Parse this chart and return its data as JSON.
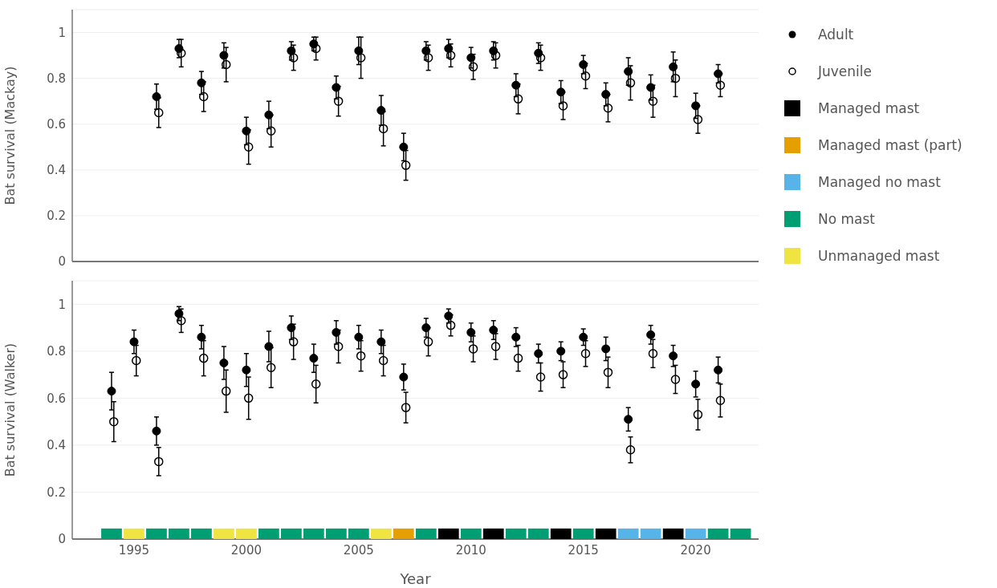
{
  "chart_data": [
    {
      "type": "scatter",
      "ylabel": "Bat survival (Mackay)",
      "xlim": [
        1992.25,
        2022.8
      ],
      "xticks": [
        1995,
        2000,
        2005,
        2010,
        2015,
        2020
      ],
      "ylim": [
        0,
        1.1
      ],
      "yticks": [
        0,
        0.2,
        0.4,
        0.6,
        0.8,
        1
      ],
      "tick_labels": "y",
      "grid": "y",
      "legend": "right",
      "series": [
        {
          "name": "Adult",
          "color": "#000000",
          "marker": "circle",
          "x": [
            1996,
            1997,
            1998,
            1999,
            2000,
            2001,
            2002,
            2003,
            2004,
            2005,
            2006,
            2007,
            2008,
            2009,
            2010,
            2011,
            2012,
            2013,
            2014,
            2015,
            2016,
            2017,
            2018,
            2019,
            2020,
            2021
          ],
          "values": [
            0.72,
            0.93,
            0.78,
            0.9,
            0.57,
            0.64,
            0.92,
            0.95,
            0.76,
            0.92,
            0.66,
            0.5,
            0.92,
            0.93,
            0.89,
            0.92,
            0.77,
            0.91,
            0.74,
            0.86,
            0.73,
            0.83,
            0.76,
            0.85,
            0.68,
            0.82
          ],
          "errors": [
            0.055,
            0.04,
            0.05,
            0.055,
            0.06,
            0.06,
            0.04,
            0.03,
            0.05,
            0.06,
            0.065,
            0.06,
            0.04,
            0.04,
            0.045,
            0.04,
            0.05,
            0.045,
            0.05,
            0.04,
            0.05,
            0.06,
            0.055,
            0.065,
            0.055,
            0.04
          ]
        },
        {
          "name": "Juvenile",
          "color": "#000000",
          "marker": "circle-open",
          "x": [
            1996.1,
            1997.1,
            1998.1,
            1999.1,
            2000.1,
            2001.1,
            2002.1,
            2003.1,
            2004.1,
            2005.1,
            2006.1,
            2007.1,
            2008.1,
            2009.1,
            2010.1,
            2011.1,
            2012.1,
            2013.1,
            2014.1,
            2015.1,
            2016.1,
            2017.1,
            2018.1,
            2019.1,
            2020.1,
            2021.1
          ],
          "values": [
            0.65,
            0.91,
            0.72,
            0.86,
            0.5,
            0.57,
            0.89,
            0.93,
            0.7,
            0.89,
            0.58,
            0.42,
            0.89,
            0.9,
            0.85,
            0.9,
            0.71,
            0.89,
            0.68,
            0.81,
            0.67,
            0.78,
            0.7,
            0.8,
            0.62,
            0.77
          ],
          "errors": [
            0.065,
            0.06,
            0.065,
            0.075,
            0.075,
            0.07,
            0.055,
            0.05,
            0.065,
            0.09,
            0.075,
            0.065,
            0.055,
            0.05,
            0.055,
            0.055,
            0.065,
            0.055,
            0.06,
            0.055,
            0.06,
            0.075,
            0.07,
            0.08,
            0.06,
            0.05
          ]
        }
      ]
    },
    {
      "type": "scatter",
      "xlabel": "Year",
      "ylabel": "Bat survival (Walker)",
      "xlim": [
        1992.25,
        2022.8
      ],
      "xticks": [
        1995,
        2000,
        2005,
        2010,
        2015,
        2020
      ],
      "ylim": [
        0,
        1.1
      ],
      "yticks": [
        0,
        0.2,
        0.4,
        0.6,
        0.8,
        1
      ],
      "grid": "y",
      "legend": "right",
      "series": [
        {
          "color": "#000000",
          "marker": "circle",
          "x": [
            1994,
            1995,
            1996,
            1997,
            1998,
            1999,
            2000,
            2001,
            2002,
            2003,
            2004,
            2005,
            2006,
            2007,
            2008,
            2009,
            2010,
            2011,
            2012,
            2013,
            2014,
            2015,
            2016,
            2017,
            2018,
            2019,
            2020,
            2021
          ],
          "values": [
            0.63,
            0.84,
            0.46,
            0.96,
            0.86,
            0.75,
            0.72,
            0.82,
            0.9,
            0.77,
            0.88,
            0.86,
            0.84,
            0.69,
            0.9,
            0.95,
            0.88,
            0.89,
            0.86,
            0.79,
            0.8,
            0.86,
            0.81,
            0.51,
            0.87,
            0.78,
            0.66,
            0.72
          ],
          "errors": [
            0.08,
            0.05,
            0.06,
            0.03,
            0.05,
            0.07,
            0.07,
            0.065,
            0.05,
            0.06,
            0.05,
            0.05,
            0.05,
            0.055,
            0.04,
            0.03,
            0.04,
            0.04,
            0.04,
            0.04,
            0.04,
            0.035,
            0.05,
            0.05,
            0.04,
            0.045,
            0.055,
            0.055
          ]
        },
        {
          "color": "#000000",
          "marker": "circle-open",
          "x": [
            1994.1,
            1995.1,
            1996.1,
            1997.1,
            1998.1,
            1999.1,
            2000.1,
            2001.1,
            2002.1,
            2003.1,
            2004.1,
            2005.1,
            2006.1,
            2007.1,
            2008.1,
            2009.1,
            2010.1,
            2011.1,
            2012.1,
            2013.1,
            2014.1,
            2015.1,
            2016.1,
            2017.1,
            2018.1,
            2019.1,
            2020.1,
            2021.1
          ],
          "values": [
            0.5,
            0.76,
            0.33,
            0.93,
            0.77,
            0.63,
            0.6,
            0.73,
            0.84,
            0.66,
            0.82,
            0.78,
            0.76,
            0.56,
            0.84,
            0.91,
            0.81,
            0.82,
            0.77,
            0.69,
            0.7,
            0.79,
            0.71,
            0.38,
            0.79,
            0.68,
            0.53,
            0.59
          ],
          "errors": [
            0.085,
            0.065,
            0.06,
            0.05,
            0.075,
            0.09,
            0.09,
            0.085,
            0.075,
            0.08,
            0.07,
            0.065,
            0.065,
            0.065,
            0.06,
            0.045,
            0.055,
            0.055,
            0.055,
            0.06,
            0.055,
            0.055,
            0.065,
            0.055,
            0.06,
            0.06,
            0.065,
            0.07
          ]
        },
        {
          "name": "Managed mast",
          "type": "bar",
          "color": "#000000",
          "x": [
            2009,
            2011,
            2014,
            2016,
            2019
          ],
          "values": [
            0.045,
            0.045,
            0.045,
            0.045,
            0.045
          ]
        },
        {
          "name": "Managed mast (part)",
          "type": "bar",
          "color": "#e69f00",
          "x": [
            2007
          ],
          "values": [
            0.045
          ]
        },
        {
          "name": "Managed no mast",
          "type": "bar",
          "color": "#56b4e9",
          "x": [
            2017,
            2018,
            2020
          ],
          "values": [
            0.045,
            0.045,
            0.045
          ]
        },
        {
          "name": "No mast",
          "type": "bar",
          "color": "#009e73",
          "x": [
            1994,
            1996,
            1997,
            1998,
            2001,
            2002,
            2003,
            2004,
            2005,
            2008,
            2010,
            2012,
            2013,
            2015,
            2021,
            2022
          ],
          "values": [
            0.045,
            0.045,
            0.045,
            0.045,
            0.045,
            0.045,
            0.045,
            0.045,
            0.045,
            0.045,
            0.045,
            0.045,
            0.045,
            0.045,
            0.045,
            0.045
          ]
        },
        {
          "name": "Unmanaged mast",
          "type": "bar",
          "color": "#f0e442",
          "x": [
            1995,
            1999,
            2000,
            2006
          ],
          "values": [
            0.045,
            0.045,
            0.045,
            0.045
          ]
        }
      ]
    }
  ]
}
